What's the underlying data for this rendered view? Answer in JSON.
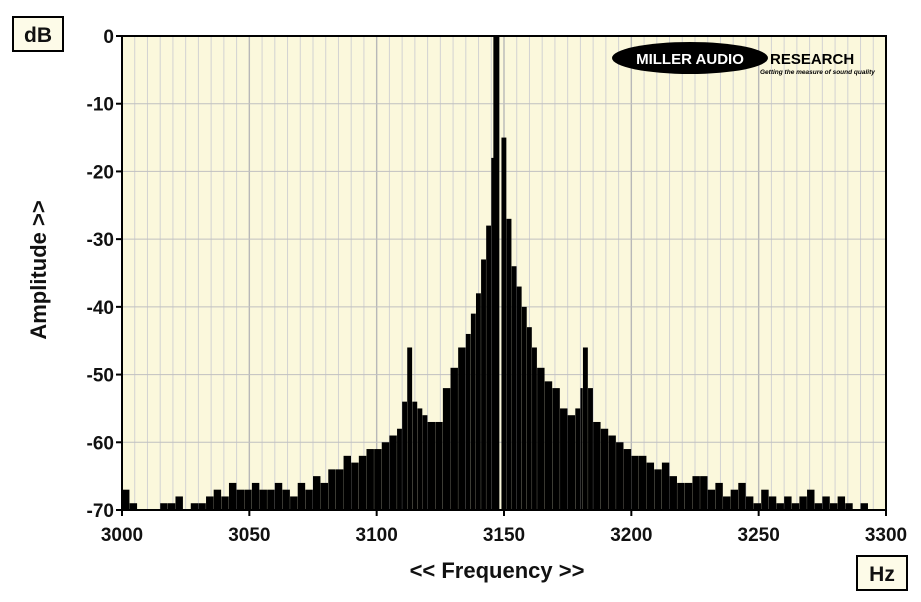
{
  "logo": {
    "part1": "MILLER AUDIO",
    "part2": "RESEARCH",
    "tagline": "Getting the measure of sound quality"
  },
  "chart_data": {
    "type": "bar",
    "title": "",
    "xlabel": "<< Frequency >>",
    "ylabel": "Amplitude >>",
    "x_unit": "Hz",
    "y_unit": "dB",
    "xlim": [
      3000,
      3300
    ],
    "ylim": [
      -70,
      0
    ],
    "x_ticks": [
      3000,
      3050,
      3100,
      3150,
      3200,
      3250,
      3300
    ],
    "y_ticks": [
      0,
      -10,
      -20,
      -30,
      -40,
      -50,
      -60,
      -70
    ],
    "grid": true,
    "grid_minor_x_step": 5,
    "background_color": "#fbf8dc",
    "bar_color": "#000000",
    "series": [
      {
        "peaks_hz": [
          3147,
          3112,
          3181
        ],
        "x": [
          3000,
          3003,
          3006,
          3009,
          3012,
          3015,
          3018,
          3021,
          3024,
          3027,
          3030,
          3033,
          3036,
          3039,
          3042,
          3045,
          3048,
          3051,
          3054,
          3057,
          3060,
          3063,
          3066,
          3069,
          3072,
          3075,
          3078,
          3081,
          3084,
          3087,
          3090,
          3093,
          3096,
          3099,
          3102,
          3105,
          3108,
          3110,
          3112,
          3114,
          3116,
          3118,
          3120,
          3123,
          3126,
          3129,
          3132,
          3135,
          3137,
          3139,
          3141,
          3143,
          3145,
          3147,
          3149,
          3151,
          3153,
          3155,
          3157,
          3159,
          3161,
          3163,
          3166,
          3169,
          3172,
          3175,
          3178,
          3180,
          3181,
          3183,
          3185,
          3188,
          3191,
          3194,
          3197,
          3200,
          3203,
          3206,
          3209,
          3212,
          3215,
          3218,
          3221,
          3224,
          3227,
          3230,
          3233,
          3236,
          3239,
          3242,
          3245,
          3248,
          3251,
          3254,
          3257,
          3260,
          3263,
          3266,
          3269,
          3272,
          3275,
          3278,
          3281,
          3284,
          3287,
          3290
        ],
        "values": [
          -67,
          -69,
          -70,
          -70,
          -70,
          -69,
          -69,
          -68,
          -70,
          -69,
          -69,
          -68,
          -67,
          -68,
          -66,
          -67,
          -67,
          -66,
          -67,
          -67,
          -66,
          -67,
          -68,
          -66,
          -67,
          -65,
          -66,
          -64,
          -64,
          -62,
          -63,
          -62,
          -61,
          -61,
          -60,
          -59,
          -58,
          -54,
          -46,
          -54,
          -55,
          -56,
          -57,
          -57,
          -52,
          -49,
          -46,
          -44,
          -41,
          -38,
          -33,
          -28,
          -18,
          0,
          -15,
          -27,
          -34,
          -37,
          -40,
          -43,
          -46,
          -49,
          -51,
          -52,
          -55,
          -56,
          -55,
          -52,
          -46,
          -52,
          -57,
          -58,
          -59,
          -60,
          -61,
          -62,
          -62,
          -63,
          -64,
          -63,
          -65,
          -66,
          -66,
          -65,
          -65,
          -67,
          -66,
          -68,
          -67,
          -66,
          -68,
          -69,
          -67,
          -68,
          -69,
          -68,
          -69,
          -68,
          -67,
          -69,
          -68,
          -69,
          -68,
          -69,
          -70,
          -69
        ]
      }
    ]
  }
}
